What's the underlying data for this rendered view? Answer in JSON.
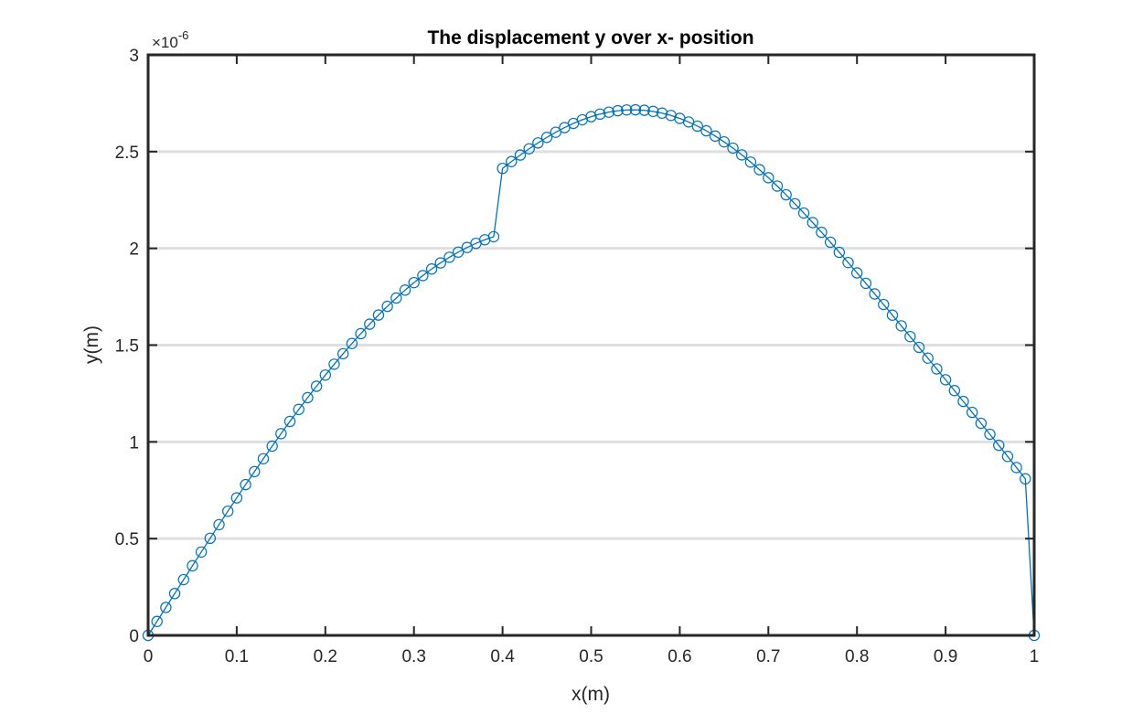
{
  "chart_data": {
    "type": "line",
    "title": "The displacement y over x- position",
    "xlabel": "x(m)",
    "ylabel": "y(m)",
    "xlim": [
      0,
      1
    ],
    "ylim": [
      0,
      3
    ],
    "y_exponent_label": "×10",
    "y_exponent_power": "-6",
    "y_multiplier": 1e-06,
    "x_ticks": [
      "0",
      "0.1",
      "0.2",
      "0.3",
      "0.4",
      "0.5",
      "0.6",
      "0.7",
      "0.8",
      "0.9",
      "1"
    ],
    "y_ticks": [
      "0",
      "0.5",
      "1",
      "1.5",
      "2",
      "2.5",
      "3"
    ],
    "grid": "horizontal",
    "marker": "circle",
    "line_color": "#0072BD",
    "series": [
      {
        "x": [
          0.0,
          0.01,
          0.02,
          0.03,
          0.04,
          0.05,
          0.06,
          0.07,
          0.08,
          0.09,
          0.1,
          0.11,
          0.12,
          0.13,
          0.14,
          0.15,
          0.16,
          0.17,
          0.18,
          0.19,
          0.2,
          0.21,
          0.22,
          0.23,
          0.24,
          0.25,
          0.26,
          0.27,
          0.28,
          0.29,
          0.3,
          0.31,
          0.32,
          0.33,
          0.34,
          0.35,
          0.36,
          0.37,
          0.38,
          0.39,
          0.4,
          0.41,
          0.42,
          0.43,
          0.44,
          0.45,
          0.46,
          0.47,
          0.48,
          0.49,
          0.5,
          0.51,
          0.52,
          0.53,
          0.54,
          0.55,
          0.56,
          0.57,
          0.58,
          0.59,
          0.6,
          0.61,
          0.62,
          0.63,
          0.64,
          0.65,
          0.66,
          0.67,
          0.68,
          0.69,
          0.7,
          0.71,
          0.72,
          0.73,
          0.74,
          0.75,
          0.76,
          0.77,
          0.78,
          0.79,
          0.8,
          0.81,
          0.82,
          0.83,
          0.84,
          0.85,
          0.86,
          0.87,
          0.88,
          0.89,
          0.9,
          0.91,
          0.92,
          0.93,
          0.94,
          0.95,
          0.96,
          0.97,
          0.98,
          0.99,
          1.0
        ],
        "y": [
          0.0,
          0.0721,
          0.1442,
          0.2162,
          0.288,
          0.3596,
          0.4309,
          0.5017,
          0.572,
          0.6417,
          0.7107,
          0.7789,
          0.8463,
          0.9128,
          0.9782,
          1.0426,
          1.1058,
          1.1677,
          1.2283,
          1.2874,
          1.3451,
          1.4012,
          1.4556,
          1.5083,
          1.5592,
          1.6082,
          1.6553,
          1.7004,
          1.7434,
          1.7843,
          1.8229,
          1.8593,
          1.8933,
          1.9249,
          1.954,
          1.9806,
          2.0046,
          2.0259,
          2.0444,
          2.0602,
          2.4133,
          2.4484,
          2.4822,
          2.5145,
          2.545,
          2.5736,
          2.6,
          2.6241,
          2.6456,
          2.6645,
          2.6806,
          2.6938,
          2.704,
          2.7112,
          2.7152,
          2.716,
          2.7136,
          2.7079,
          2.699,
          2.6869,
          2.6716,
          2.6532,
          2.6318,
          2.6074,
          2.5803,
          2.5504,
          2.518,
          2.4831,
          2.4459,
          2.4065,
          2.3651,
          2.3219,
          2.2769,
          2.2304,
          2.1825,
          2.1333,
          2.0831,
          2.0318,
          1.9797,
          1.9268,
          1.8733,
          1.8193,
          1.7648,
          1.71,
          1.6549,
          1.5996,
          1.5441,
          1.4885,
          1.4328,
          1.377,
          1.321,
          1.265,
          1.2088,
          1.1525,
          1.096,
          1.0393,
          0.9823,
          0.925,
          0.8673,
          0.8091,
          0.0
        ]
      }
    ]
  }
}
